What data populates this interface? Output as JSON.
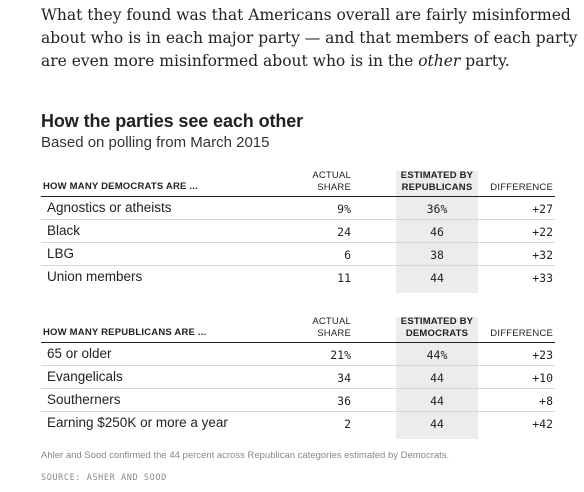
{
  "article": {
    "intro_part1": "What they found was that Americans overall are fairly misinformed about who is in each major party — and that members of each party are even more misinformed about who is in the ",
    "intro_emphasis": "other",
    "intro_part2": " party."
  },
  "chart": {
    "title": "How the parties see each other",
    "subtitle": "Based on polling from March 2015",
    "note": "Ahler and Sood confirmed the 44 percent across Republican categories estimated by Democrats.",
    "source": "SOURCE: ASHER AND SOOD"
  },
  "tables": [
    {
      "group_label": "HOW MANY DEMOCRATS ARE ...",
      "col_actual": "ACTUAL SHARE",
      "col_estimated": "ESTIMATED BY REPUBLICANS",
      "col_difference": "DIFFERENCE",
      "rows": [
        {
          "label": "Agnostics or atheists",
          "actual": "9%",
          "estimated": "36%",
          "difference": "+27"
        },
        {
          "label": "Black",
          "actual": "24",
          "estimated": "46",
          "difference": "+22"
        },
        {
          "label": "LBG",
          "actual": "6",
          "estimated": "38",
          "difference": "+32"
        },
        {
          "label": "Union members",
          "actual": "11",
          "estimated": "44",
          "difference": "+33"
        }
      ]
    },
    {
      "group_label": "HOW MANY REPUBLICANS ARE ...",
      "col_actual": "ACTUAL SHARE",
      "col_estimated": "ESTIMATED BY DEMOCRATS",
      "col_difference": "DIFFERENCE",
      "rows": [
        {
          "label": "65 or older",
          "actual": "21%",
          "estimated": "44%",
          "difference": "+23"
        },
        {
          "label": "Evangelicals",
          "actual": "34",
          "estimated": "44",
          "difference": "+10"
        },
        {
          "label": "Southerners",
          "actual": "36",
          "estimated": "44",
          "difference": "+8"
        },
        {
          "label": "Earning $250K or more a year",
          "actual": "2",
          "estimated": "44",
          "difference": "+42"
        }
      ]
    }
  ],
  "colors": {
    "text": "#222222",
    "shade": "#ececec",
    "row_rule": "#d6d6d6",
    "muted": "#888888"
  }
}
